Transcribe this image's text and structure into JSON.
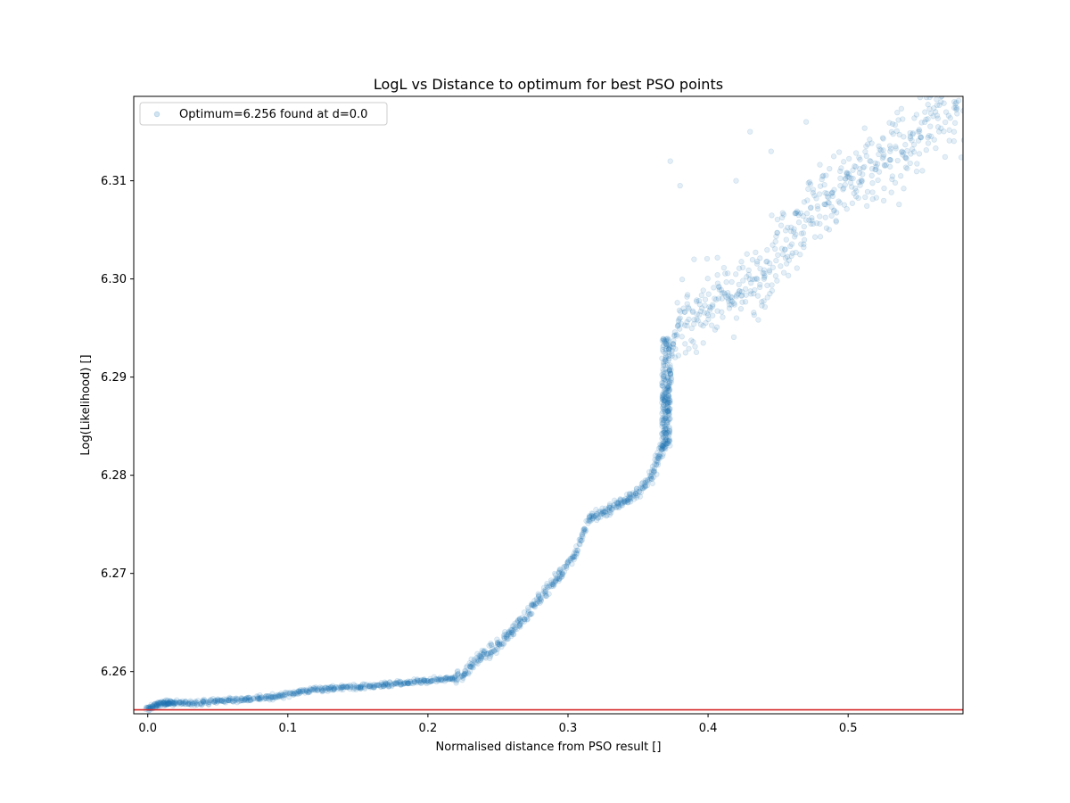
{
  "chart_data": {
    "type": "scatter",
    "title": "LogL vs Distance to optimum for best PSO points",
    "xlabel": "Normalised distance from PSO result []",
    "ylabel": "Log(Likelihood) []",
    "xlim": [
      -0.01,
      0.582
    ],
    "ylim": [
      6.2557,
      6.3186
    ],
    "x_ticks": [
      0.0,
      0.1,
      0.2,
      0.3,
      0.4,
      0.5
    ],
    "x_tick_labels": [
      "0.0",
      "0.1",
      "0.2",
      "0.3",
      "0.4",
      "0.5"
    ],
    "y_ticks": [
      6.26,
      6.27,
      6.28,
      6.29,
      6.3,
      6.31
    ],
    "y_tick_labels": [
      "6.26",
      "6.27",
      "6.28",
      "6.29",
      "6.30",
      "6.31"
    ],
    "grid": false,
    "legend": {
      "placement": "upper-left",
      "entries": [
        "Optimum=6.256 found at d=0.0"
      ]
    },
    "series": [
      {
        "name": "Optimum=6.256 found at d=0.0",
        "marker": "circle",
        "color": "#1f77b4",
        "alpha": 0.12,
        "trend": {
          "x": [
            0.0,
            0.005,
            0.01,
            0.03,
            0.06,
            0.09,
            0.11,
            0.13,
            0.16,
            0.19,
            0.22,
            0.225,
            0.235,
            0.25,
            0.27,
            0.285,
            0.295,
            0.305,
            0.315,
            0.33,
            0.35,
            0.36,
            0.365,
            0.37,
            0.372,
            0.375,
            0.38,
            0.4,
            0.43,
            0.46,
            0.48,
            0.52,
            0.56,
            0.582
          ],
          "y": [
            6.2562,
            6.2565,
            6.2568,
            6.2568,
            6.2571,
            6.2574,
            6.258,
            6.2583,
            6.2585,
            6.2589,
            6.2594,
            6.2597,
            6.2612,
            6.2626,
            6.2657,
            6.2684,
            6.27,
            6.272,
            6.2755,
            6.2766,
            6.2782,
            6.28,
            6.282,
            6.284,
            6.288,
            6.293,
            6.295,
            6.2975,
            6.299,
            6.305,
            6.308,
            6.311,
            6.316,
            6.318
          ]
        },
        "points": [
          [
            0.012,
            6.257
          ],
          [
            0.05,
            6.2572
          ],
          [
            0.08,
            6.2576
          ],
          [
            0.12,
            6.2584
          ],
          [
            0.18,
            6.259
          ],
          [
            0.215,
            6.2592
          ],
          [
            0.24,
            6.262
          ],
          [
            0.26,
            6.264
          ],
          [
            0.28,
            6.267
          ],
          [
            0.29,
            6.269
          ],
          [
            0.3,
            6.271
          ],
          [
            0.31,
            6.274
          ],
          [
            0.32,
            6.2765
          ],
          [
            0.34,
            6.2775
          ],
          [
            0.355,
            6.279
          ],
          [
            0.368,
            6.283
          ],
          [
            0.371,
            6.287
          ],
          [
            0.373,
            6.291
          ],
          [
            0.38,
            6.296
          ],
          [
            0.39,
            6.302
          ],
          [
            0.41,
            6.298
          ],
          [
            0.44,
            6.3
          ],
          [
            0.455,
            6.303
          ],
          [
            0.47,
            6.306
          ],
          [
            0.49,
            6.307
          ],
          [
            0.51,
            6.31
          ],
          [
            0.53,
            6.313
          ],
          [
            0.55,
            6.315
          ],
          [
            0.57,
            6.317
          ],
          [
            0.373,
            6.312
          ],
          [
            0.38,
            6.3095
          ],
          [
            0.42,
            6.31
          ],
          [
            0.43,
            6.315
          ],
          [
            0.445,
            6.313
          ],
          [
            0.47,
            6.316
          ]
        ]
      }
    ],
    "reference_line": {
      "orientation": "horizontal",
      "y": 6.2561,
      "color": "#d62728"
    }
  }
}
